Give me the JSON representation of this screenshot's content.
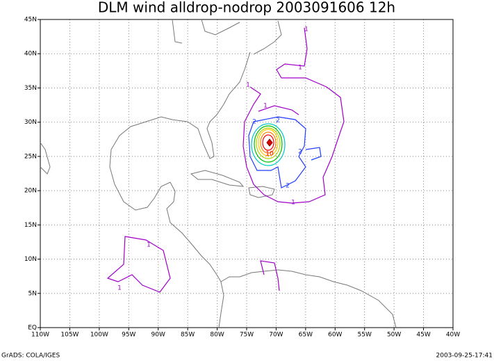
{
  "title": "DLM wind alldrop-nodrop 2003091606 12h",
  "xlim": [
    -110,
    -40
  ],
  "ylim": [
    0,
    45
  ],
  "xticks": [
    {
      "value": -110,
      "label": "110W"
    },
    {
      "value": -105,
      "label": "105W"
    },
    {
      "value": -100,
      "label": "100W"
    },
    {
      "value": -95,
      "label": "95W"
    },
    {
      "value": -90,
      "label": "90W"
    },
    {
      "value": -85,
      "label": "85W"
    },
    {
      "value": -80,
      "label": "80W"
    },
    {
      "value": -75,
      "label": "75W"
    },
    {
      "value": -70,
      "label": "70W"
    },
    {
      "value": -65,
      "label": "65W"
    },
    {
      "value": -60,
      "label": "60W"
    },
    {
      "value": -55,
      "label": "55W"
    },
    {
      "value": -50,
      "label": "50W"
    },
    {
      "value": -45,
      "label": "45W"
    },
    {
      "value": -40,
      "label": "40W"
    }
  ],
  "yticks": [
    {
      "value": 0,
      "label": "EQ"
    },
    {
      "value": 5,
      "label": "5N"
    },
    {
      "value": 10,
      "label": "10N"
    },
    {
      "value": 15,
      "label": "15N"
    },
    {
      "value": 20,
      "label": "20N"
    },
    {
      "value": 25,
      "label": "25N"
    },
    {
      "value": 30,
      "label": "30N"
    },
    {
      "value": 35,
      "label": "35N"
    },
    {
      "value": 40,
      "label": "40N"
    },
    {
      "value": 45,
      "label": "45N"
    }
  ],
  "contour_labels": [
    1,
    1,
    1,
    1,
    2,
    2,
    2,
    2,
    10,
    1,
    1,
    1
  ],
  "footer_left": "GrADS: COLA/IGES",
  "footer_right": "2003-09-25-17:41"
}
